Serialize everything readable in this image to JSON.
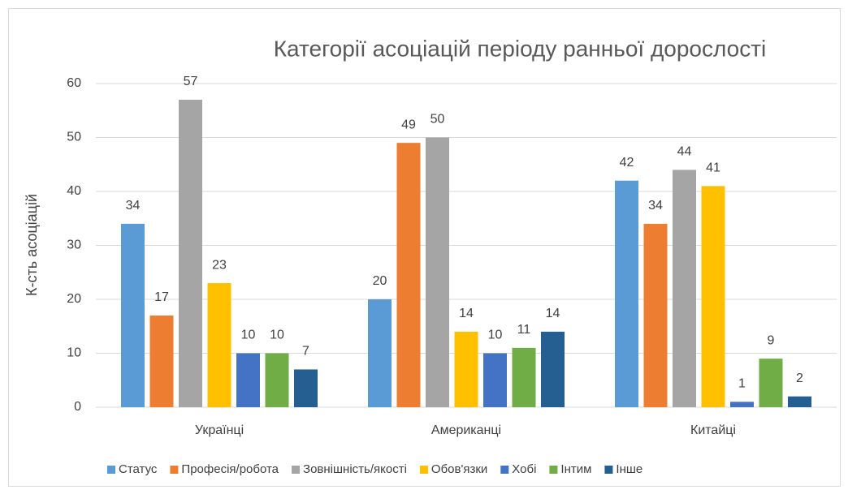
{
  "chart_data": {
    "type": "bar",
    "title": "Категорії асоціацій періоду ранньої дорослості",
    "y_label": "К-сть асоціацій",
    "categories": [
      "Українці",
      "Американці",
      "Китайці"
    ],
    "series": [
      {
        "name": "Статус",
        "color": "#5b9bd5",
        "values": [
          34,
          20,
          42
        ]
      },
      {
        "name": "Професія/робота",
        "color": "#ed7d31",
        "values": [
          17,
          49,
          34
        ]
      },
      {
        "name": "Зовнішність/якості",
        "color": "#a5a5a5",
        "values": [
          57,
          50,
          44
        ]
      },
      {
        "name": "Обов'язки",
        "color": "#ffc000",
        "values": [
          23,
          14,
          41
        ]
      },
      {
        "name": "Хобі",
        "color": "#4472c4",
        "values": [
          10,
          10,
          1
        ]
      },
      {
        "name": "Інтим",
        "color": "#70ad47",
        "values": [
          10,
          11,
          9
        ]
      },
      {
        "name": "Інше",
        "color": "#255e91",
        "values": [
          7,
          14,
          2
        ]
      }
    ],
    "ylim": [
      0,
      60
    ],
    "yticks": [
      0,
      10,
      20,
      30,
      40,
      50,
      60
    ],
    "grid": true,
    "legend": "bottom"
  }
}
